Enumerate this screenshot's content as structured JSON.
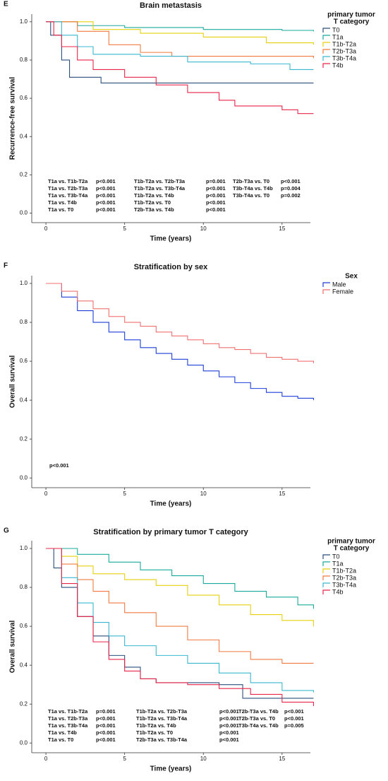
{
  "chart_data": [
    {
      "type": "line",
      "label": "E",
      "title": "Brain metastasis",
      "xlabel": "Time (years)",
      "ylabel": "Recurrence-free survival",
      "legend_title": [
        "primary tumor",
        "T category"
      ],
      "xlim": [
        -0.9,
        16.8
      ],
      "xticks": [
        0,
        5,
        10,
        15
      ],
      "ylim": [
        -0.05,
        1.04
      ],
      "yticks": [
        {
          "value": 0,
          "label": "0.0"
        },
        0.2,
        0.4,
        0.6,
        0.8,
        {
          "value": 1,
          "label": "1.0"
        }
      ],
      "series": [
        {
          "name": "T0",
          "color": "#2b4f7d",
          "x": [
            0,
            0.3,
            1,
            1.5,
            3,
            3.5,
            17
          ],
          "values": [
            1,
            0.93,
            0.8,
            0.71,
            0.71,
            0.68,
            0.68
          ]
        },
        {
          "name": "T1a",
          "color": "#1aaa9c",
          "x": [
            0,
            2,
            5,
            10,
            15,
            17
          ],
          "values": [
            1,
            0.98,
            0.97,
            0.96,
            0.955,
            0.95
          ]
        },
        {
          "name": "T1b-T2a",
          "color": "#e6d00c",
          "x": [
            0,
            3,
            6,
            10,
            14,
            17
          ],
          "values": [
            1,
            0.96,
            0.94,
            0.92,
            0.89,
            0.88
          ]
        },
        {
          "name": "T2b-T3a",
          "color": "#f27a42",
          "x": [
            0,
            2,
            4,
            6,
            8,
            17
          ],
          "values": [
            1,
            0.95,
            0.88,
            0.84,
            0.82,
            0.81
          ]
        },
        {
          "name": "T3b-T4a",
          "color": "#3ab7d0",
          "x": [
            0,
            1,
            2,
            3,
            6,
            9,
            13,
            15.5,
            17
          ],
          "values": [
            1,
            0.93,
            0.87,
            0.83,
            0.82,
            0.79,
            0.78,
            0.75,
            0.75
          ]
        },
        {
          "name": "T4b",
          "color": "#e8254a",
          "x": [
            0,
            0.5,
            1,
            2,
            3,
            5,
            7,
            9,
            11,
            12,
            15,
            16,
            17
          ],
          "values": [
            1,
            0.93,
            0.87,
            0.8,
            0.75,
            0.71,
            0.67,
            0.63,
            0.59,
            0.56,
            0.54,
            0.52,
            0.52
          ]
        }
      ],
      "annotations": [
        [
          [
            "T1a vs. T1b-T2a",
            "p<0.001"
          ],
          [
            "T1a vs. T2b-T3a",
            "p<0.001"
          ],
          [
            "T1a vs. T3b-T4a",
            "p<0.001"
          ],
          [
            "T1a vs. T4b",
            "p<0.001"
          ],
          [
            "T1a vs. T0",
            "p<0.001"
          ]
        ],
        [
          [
            "T1b-T2a vs. T2b-T3a",
            "p=0.001"
          ],
          [
            "T1b-T2a vs. T3b-T4a",
            "p<0.001"
          ],
          [
            "T1b-T2a vs. T4b",
            "p<0.001"
          ],
          [
            "T1b-T2a vs. T0",
            "p<0.001"
          ],
          [
            "T2b-T3a vs. T4b",
            "p<0.001"
          ]
        ],
        [
          [
            "T2b-T3a vs. T0",
            "p<0.001"
          ],
          [
            "T3b-T4a vs. T4b",
            "p=0.004"
          ],
          [
            "T3b-T4a vs. T0",
            "p=0.002"
          ]
        ]
      ]
    },
    {
      "type": "line",
      "label": "F",
      "title": "Stratification by sex",
      "xlabel": "Time (years)",
      "ylabel": "Overall survival",
      "legend_title": [
        "Sex"
      ],
      "xlim": [
        -0.9,
        16.8
      ],
      "xticks": [
        0,
        5,
        10,
        15
      ],
      "ylim": [
        -0.05,
        1.04
      ],
      "yticks": [
        {
          "value": 0,
          "label": "0.0"
        },
        0.2,
        0.4,
        0.6,
        0.8,
        {
          "value": 1,
          "label": "1.0"
        }
      ],
      "series": [
        {
          "name": "Male",
          "color": "#1e3fd8",
          "x": [
            0,
            1,
            2,
            3,
            4,
            5,
            6,
            7,
            8,
            9,
            10,
            11,
            12,
            13,
            14,
            15,
            16,
            17
          ],
          "values": [
            1,
            0.93,
            0.86,
            0.8,
            0.75,
            0.71,
            0.67,
            0.64,
            0.61,
            0.58,
            0.55,
            0.52,
            0.49,
            0.46,
            0.44,
            0.42,
            0.41,
            0.4
          ]
        },
        {
          "name": "Female",
          "color": "#f07070",
          "x": [
            0,
            1,
            2,
            3,
            4,
            5,
            6,
            7,
            8,
            9,
            10,
            11,
            12,
            13,
            14,
            15,
            16,
            17
          ],
          "values": [
            1,
            0.96,
            0.91,
            0.87,
            0.83,
            0.8,
            0.78,
            0.75,
            0.73,
            0.71,
            0.69,
            0.67,
            0.66,
            0.64,
            0.62,
            0.61,
            0.6,
            0.59
          ]
        }
      ],
      "annotations": [
        [
          [
            "p<0.001"
          ]
        ]
      ]
    },
    {
      "type": "line",
      "label": "G",
      "title": "Stratification by primary tumor T category",
      "xlabel": "Time (years)",
      "ylabel": "Overall survival",
      "legend_title": [
        "primary tumor",
        "T category"
      ],
      "xlim": [
        -0.9,
        16.8
      ],
      "xticks": [
        0,
        5,
        10,
        15
      ],
      "ylim": [
        -0.05,
        1.04
      ],
      "yticks": [
        {
          "value": 0,
          "label": "0.0"
        },
        0.2,
        0.4,
        0.6,
        0.8,
        {
          "value": 1,
          "label": "1.0"
        }
      ],
      "series": [
        {
          "name": "T0",
          "color": "#2b4f7d",
          "x": [
            0,
            0.5,
            1,
            2,
            3,
            4,
            5,
            6,
            7,
            10,
            11,
            12.5,
            17
          ],
          "values": [
            1,
            0.9,
            0.8,
            0.65,
            0.55,
            0.45,
            0.39,
            0.33,
            0.31,
            0.31,
            0.3,
            0.23,
            0.23
          ]
        },
        {
          "name": "T1a",
          "color": "#1aaa9c",
          "x": [
            0,
            2,
            4,
            6,
            8,
            10,
            12,
            14,
            16,
            17
          ],
          "values": [
            1,
            0.97,
            0.93,
            0.89,
            0.86,
            0.82,
            0.78,
            0.75,
            0.71,
            0.69
          ]
        },
        {
          "name": "T1b-T2a",
          "color": "#e6d00c",
          "x": [
            0,
            1,
            2,
            3,
            5,
            7,
            9,
            11,
            13,
            15,
            17
          ],
          "values": [
            1,
            0.96,
            0.91,
            0.87,
            0.84,
            0.81,
            0.76,
            0.71,
            0.66,
            0.63,
            0.6
          ]
        },
        {
          "name": "T2b-T3a",
          "color": "#f27a42",
          "x": [
            0,
            1,
            2,
            3,
            4,
            5,
            7,
            9,
            11,
            13,
            15,
            17
          ],
          "values": [
            1,
            0.92,
            0.84,
            0.78,
            0.72,
            0.67,
            0.6,
            0.53,
            0.47,
            0.43,
            0.41,
            0.41
          ]
        },
        {
          "name": "T3b-T4a",
          "color": "#3ab7d0",
          "x": [
            0,
            1,
            2,
            3,
            4,
            5,
            7,
            9,
            11,
            13,
            15,
            17
          ],
          "values": [
            1,
            0.85,
            0.72,
            0.62,
            0.55,
            0.5,
            0.45,
            0.41,
            0.36,
            0.31,
            0.27,
            0.26
          ]
        },
        {
          "name": "T4b",
          "color": "#e8254a",
          "x": [
            0,
            1,
            2,
            3,
            4,
            5,
            6,
            7,
            9,
            11,
            13,
            15,
            16.5,
            17
          ],
          "values": [
            1,
            0.82,
            0.65,
            0.52,
            0.43,
            0.37,
            0.33,
            0.31,
            0.3,
            0.28,
            0.25,
            0.21,
            0.21,
            0.19
          ]
        }
      ],
      "annotations": [
        [
          [
            "T1a vs. T1b-T2a",
            "p=0.001"
          ],
          [
            "T1a vs. T2b-T3a",
            "p<0.001"
          ],
          [
            "T1a vs. T3b-T4a",
            "p<0.001"
          ],
          [
            "T1a vs. T4b",
            "p<0.001"
          ],
          [
            "T1a vs. T0",
            "p<0.001"
          ]
        ],
        [
          [
            "T1b-T2a vs. T2b-T3a",
            "p<0.001"
          ],
          [
            "T1b-T2a vs. T3b-T4a",
            "p<0.001"
          ],
          [
            "T1b-T2a vs. T4b",
            "p<0.001"
          ],
          [
            "T1b-T2a vs. T0",
            "p<0.001"
          ],
          [
            "T2b-T3a vs. T3b-T4a",
            "p<0.001"
          ]
        ],
        [
          [
            "T2b-T3a vs. T4b",
            "p<0.001"
          ],
          [
            "T2b-T3a vs. T0",
            "p<0.001"
          ],
          [
            "T3b-T4a vs. T4b",
            "p=0.005"
          ]
        ]
      ]
    }
  ]
}
